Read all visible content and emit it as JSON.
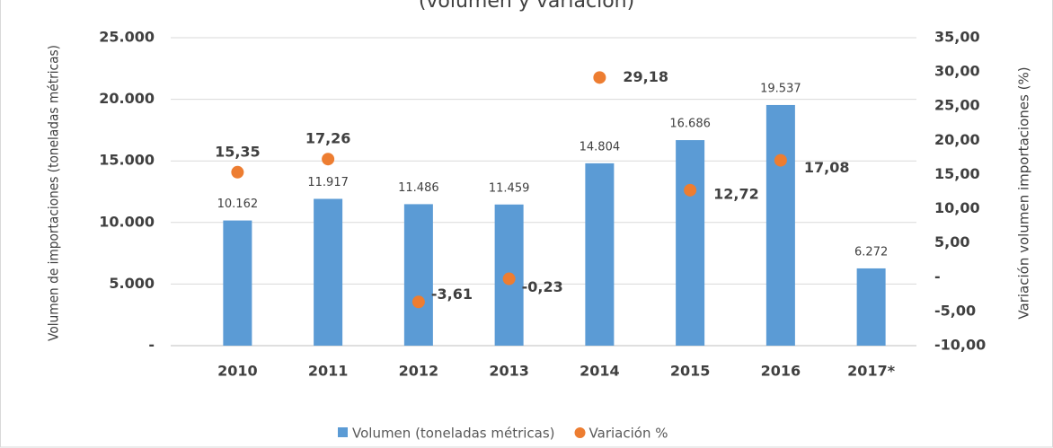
{
  "chart_data": {
    "type": "bar",
    "title": "(volumen y variación)",
    "categories": [
      "2010",
      "2011",
      "2012",
      "2013",
      "2014",
      "2015",
      "2016",
      "2017*"
    ],
    "series": [
      {
        "name": "Volumen (toneladas métricas)",
        "color": "#5b9bd5",
        "type": "bar",
        "values": [
          10162,
          11917,
          11486,
          11459,
          14804,
          16686,
          19537,
          6272
        ],
        "value_labels": [
          "10.162",
          "11.917",
          "11.486",
          "11.459",
          "14.804",
          "16.686",
          "19.537",
          "6.272"
        ]
      },
      {
        "name": "Variación %",
        "color": "#ed7d31",
        "type": "scatter",
        "axis": "y2",
        "values": [
          15.35,
          17.26,
          -3.61,
          -0.23,
          29.18,
          12.72,
          17.08,
          null
        ],
        "value_labels": [
          "15,35",
          "17,26",
          "-3,61",
          "-0,23",
          "29,18",
          "12,72",
          "17,08",
          null
        ]
      }
    ],
    "ylabel": "Volumen de importaciones (toneladas métricas)",
    "y2label": "Variación  volumen importaciones (%)",
    "ylim": [
      0,
      25000
    ],
    "yticks": [
      {
        "value": 0,
        "label": "-"
      },
      {
        "value": 5000,
        "label": "5.000"
      },
      {
        "value": 10000,
        "label": "10.000"
      },
      {
        "value": 15000,
        "label": "15.000"
      },
      {
        "value": 20000,
        "label": "20.000"
      },
      {
        "value": 25000,
        "label": "25.000"
      }
    ],
    "y2lim": [
      -10,
      35
    ],
    "y2ticks": [
      {
        "value": -10,
        "label": "-10,00"
      },
      {
        "value": -5,
        "label": "-5,00"
      },
      {
        "value": 0,
        "label": "-"
      },
      {
        "value": 5,
        "label": "5,00"
      },
      {
        "value": 10,
        "label": "10,00"
      },
      {
        "value": 15,
        "label": "15,00"
      },
      {
        "value": 20,
        "label": "20,00"
      },
      {
        "value": 25,
        "label": "25,00"
      },
      {
        "value": 30,
        "label": "30,00"
      },
      {
        "value": 35,
        "label": "35,00"
      }
    ],
    "grid": true,
    "legend": "bottom"
  }
}
